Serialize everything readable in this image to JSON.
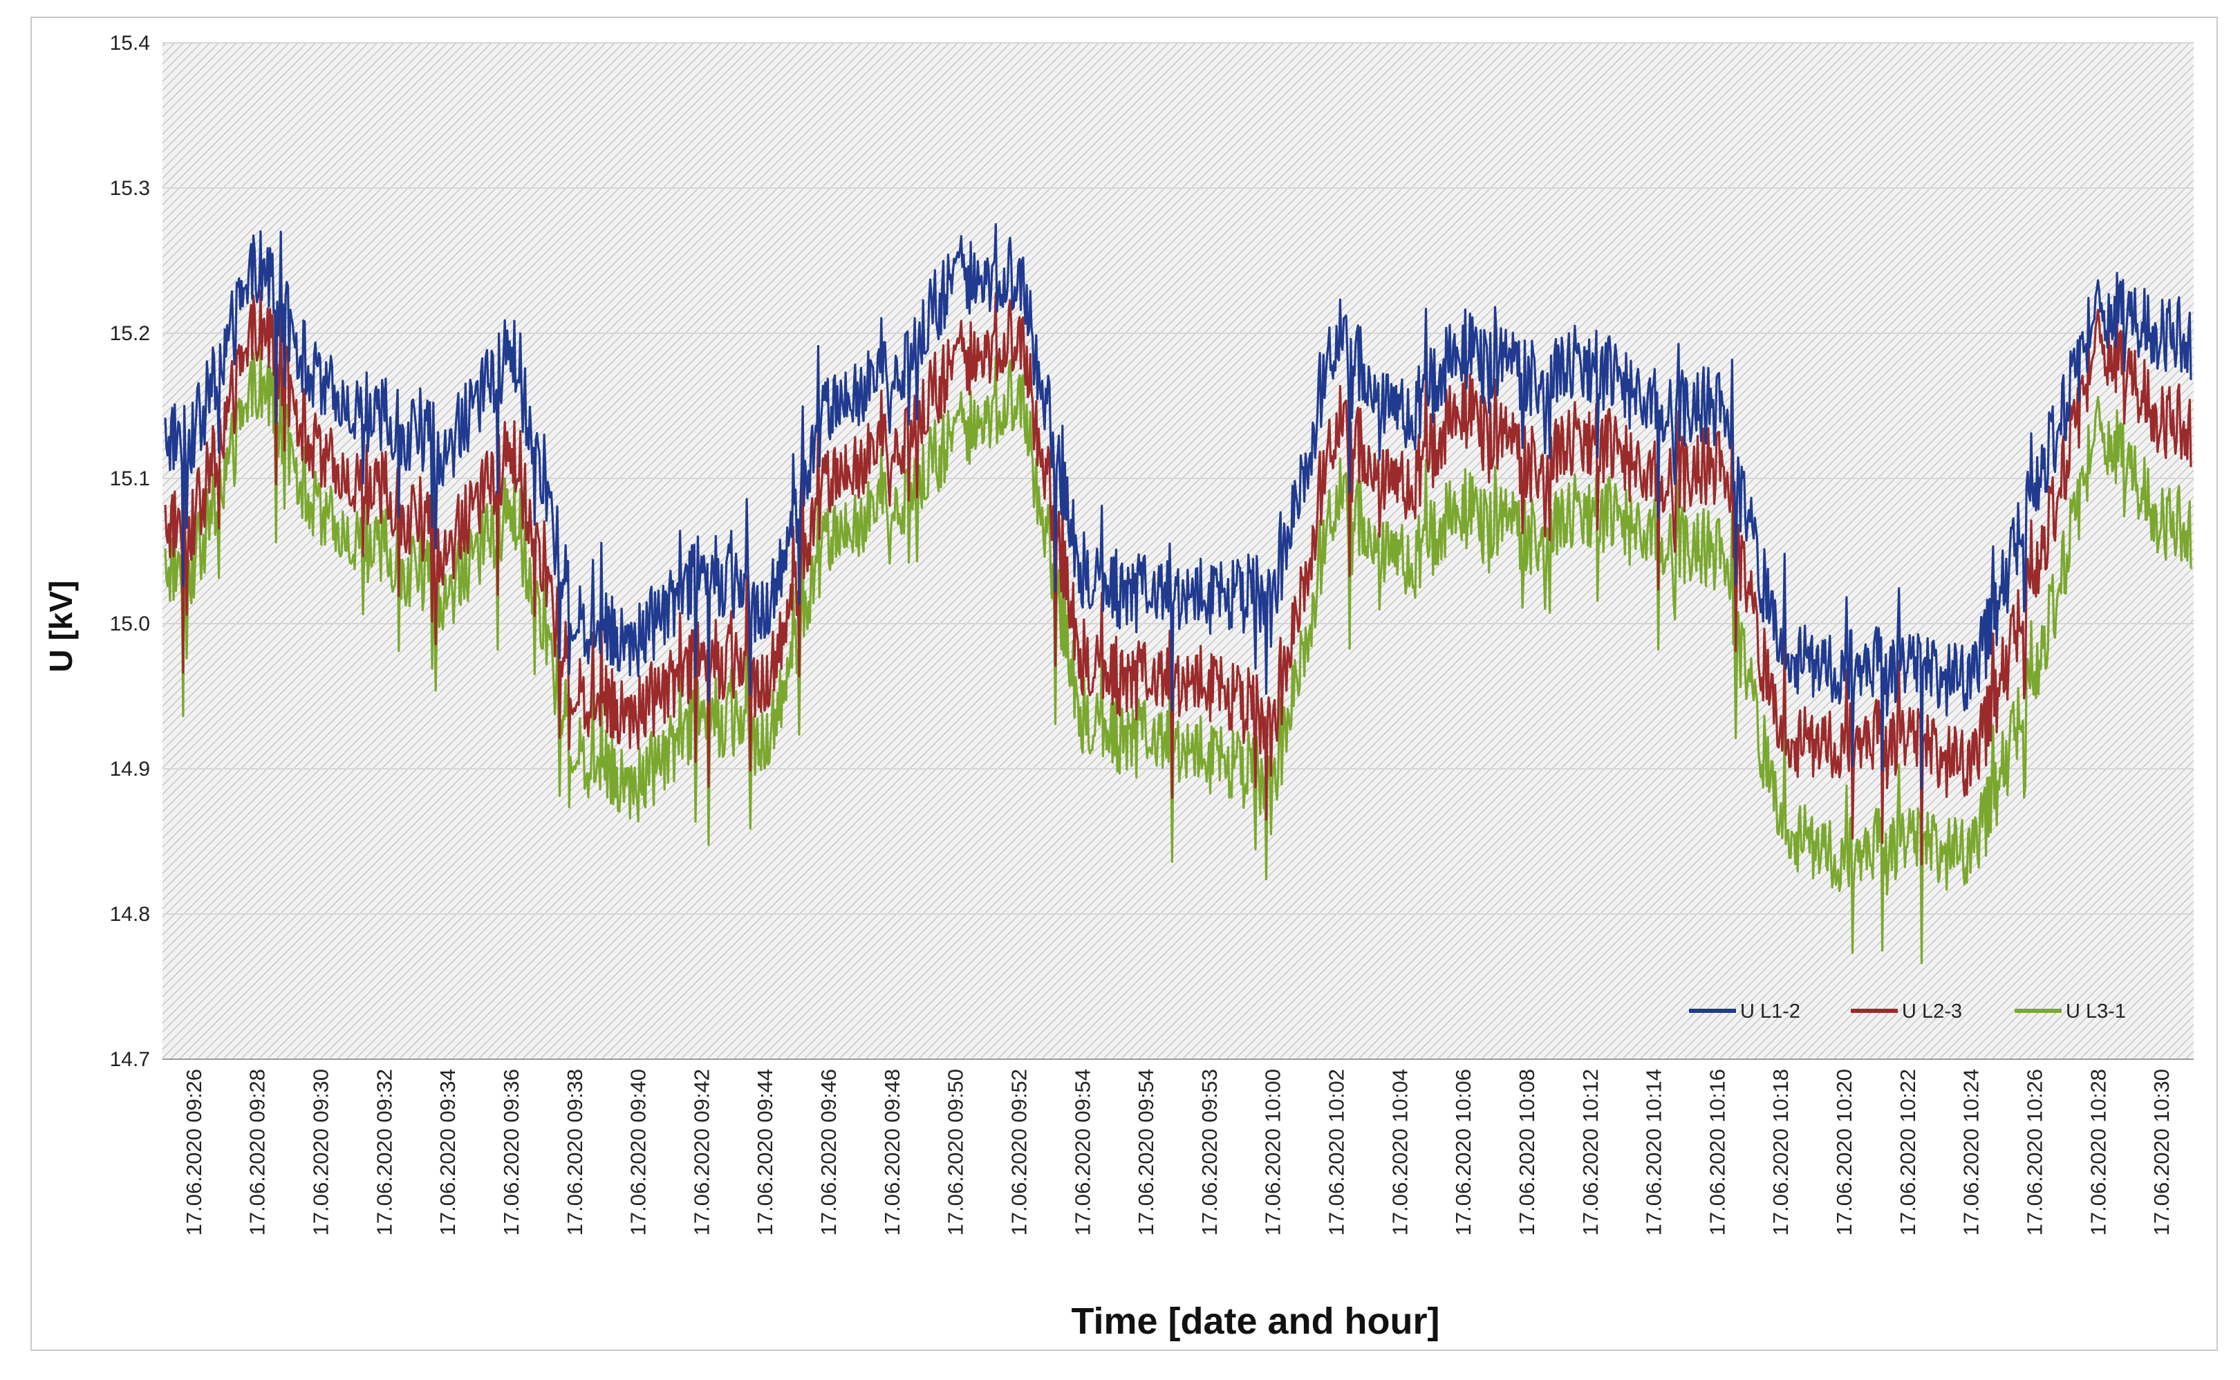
{
  "chart_data": {
    "type": "line",
    "title": "",
    "xlabel": "Time [date and hour]",
    "ylabel": "U [kV]",
    "ylim": [
      14.7,
      15.4
    ],
    "yticks": [
      "14.7",
      "14.8",
      "14.9",
      "15.0",
      "15.1",
      "15.2",
      "15.3",
      "15.4"
    ],
    "grid": true,
    "legend_position": "bottom-right",
    "categories": [
      "17.06.2020 09:26",
      "17.06.2020 09:28",
      "17.06.2020 09:30",
      "17.06.2020 09:32",
      "17.06.2020 09:34",
      "17.06.2020 09:36",
      "17.06.2020 09:38",
      "17.06.2020 09:40",
      "17.06.2020 09:42",
      "17.06.2020 09:44",
      "17.06.2020 09:46",
      "17.06.2020 09:48",
      "17.06.2020 09:50",
      "17.06.2020 09:52",
      "17.06.2020 09:54",
      "17.06.2020 09:54",
      "17.06.2020 09:53",
      "17.06.2020 10:00",
      "17.06.2020 10:02",
      "17.06.2020 10:04",
      "17.06.2020 10:06",
      "17.06.2020 10:08",
      "17.06.2020 10:12",
      "17.06.2020 10:14",
      "17.06.2020 10:16",
      "17.06.2020 10:18",
      "17.06.2020 10:20",
      "17.06.2020 10:22",
      "17.06.2020 10:24",
      "17.06.2020 10:26",
      "17.06.2020 10:28",
      "17.06.2020 10:30"
    ],
    "series": [
      {
        "name": "U L1-2",
        "color": "#1f3a8f",
        "values": [
          15.13,
          15.25,
          15.16,
          15.14,
          15.12,
          15.19,
          15.0,
          14.99,
          15.04,
          15.01,
          15.15,
          15.17,
          15.24,
          15.24,
          15.03,
          15.02,
          15.02,
          15.02,
          15.2,
          15.14,
          15.19,
          15.17,
          15.18,
          15.15,
          15.15,
          14.98,
          14.97,
          14.97,
          14.96,
          15.09,
          15.22,
          15.2
        ]
      },
      {
        "name": "U L2-3",
        "color": "#9b2a2a",
        "values": [
          15.07,
          15.21,
          15.11,
          15.09,
          15.05,
          15.12,
          14.95,
          14.94,
          14.98,
          14.96,
          15.1,
          15.12,
          15.18,
          15.2,
          14.97,
          14.96,
          14.96,
          14.93,
          15.14,
          15.09,
          15.15,
          15.11,
          15.13,
          15.1,
          15.11,
          14.92,
          14.92,
          14.92,
          14.9,
          15.03,
          15.2,
          15.14
        ]
      },
      {
        "name": "U L3-1",
        "color": "#7aa82e",
        "values": [
          15.04,
          15.17,
          15.07,
          15.05,
          15.02,
          15.08,
          14.91,
          14.89,
          14.94,
          14.92,
          15.06,
          15.08,
          15.13,
          15.16,
          14.93,
          14.92,
          14.91,
          14.89,
          15.09,
          15.04,
          15.08,
          15.06,
          15.08,
          15.06,
          15.05,
          14.86,
          14.84,
          14.85,
          14.84,
          14.96,
          15.14,
          15.07
        ]
      }
    ]
  }
}
